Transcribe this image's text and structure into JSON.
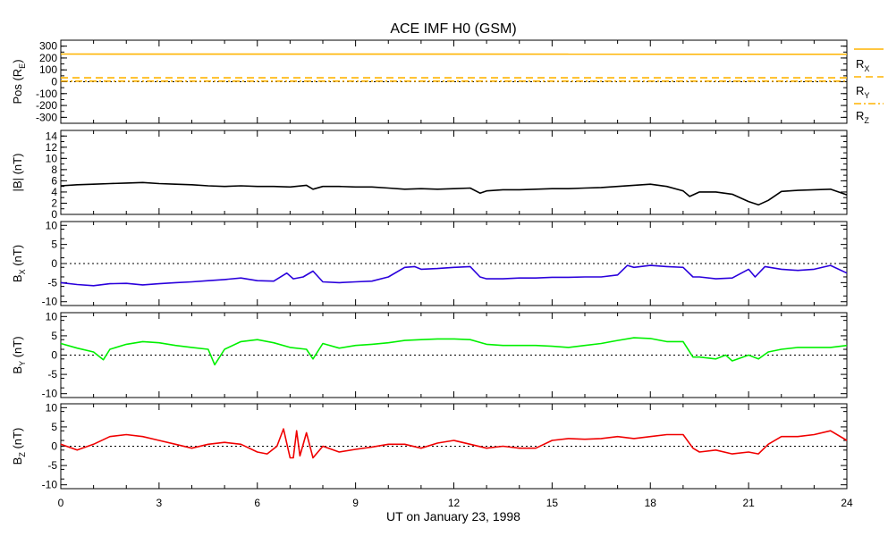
{
  "title": "ACE IMF H0 (GSM)",
  "x_axis": {
    "label": "UT on January 23, 1998",
    "range": [
      0,
      24
    ],
    "ticks": [
      0,
      3,
      6,
      9,
      12,
      15,
      18,
      21,
      24
    ]
  },
  "chart_data": [
    {
      "type": "line",
      "ylabel": "Pos (R",
      "ylabel_sub": "E",
      "ylabel_suffix": ")",
      "ylim": [
        -350,
        350
      ],
      "yticks": [
        -300,
        -200,
        -100,
        0,
        100,
        200,
        300
      ],
      "zero_line": true,
      "legend": [
        {
          "name": "R",
          "sub": "X",
          "style": "solid"
        },
        {
          "name": "R",
          "sub": "Y",
          "style": "dashed"
        },
        {
          "name": "R",
          "sub": "Z",
          "style": "dashdot"
        }
      ],
      "series": [
        {
          "name": "RX",
          "color": "#ffb400",
          "dash": "",
          "x": [
            0,
            24
          ],
          "y": [
            233,
            232
          ]
        },
        {
          "name": "RY",
          "color": "#ffb400",
          "dash": "8,5",
          "x": [
            0,
            24
          ],
          "y": [
            33,
            33
          ]
        },
        {
          "name": "RZ",
          "color": "#ffb400",
          "dash": "8,3,2,3",
          "x": [
            0,
            24
          ],
          "y": [
            5,
            5
          ]
        }
      ]
    },
    {
      "type": "line",
      "ylabel": "|B| (nT)",
      "ylim": [
        0,
        15
      ],
      "yticks": [
        0,
        2,
        4,
        6,
        8,
        10,
        12,
        14
      ],
      "zero_line": false,
      "series": [
        {
          "name": "|B|",
          "color": "#000000",
          "x": [
            0,
            0.5,
            1,
            1.5,
            2,
            2.5,
            3,
            3.5,
            4,
            4.5,
            5,
            5.5,
            6,
            6.5,
            7,
            7.5,
            7.7,
            8,
            8.5,
            9,
            9.5,
            10,
            10.5,
            11,
            11.5,
            12,
            12.5,
            12.8,
            13,
            13.5,
            14,
            14.5,
            15,
            15.5,
            16,
            16.5,
            17,
            17.5,
            18,
            18.5,
            19,
            19.2,
            19.5,
            20,
            20.5,
            21,
            21.3,
            21.6,
            22,
            22.5,
            23,
            23.5,
            24
          ],
          "y": [
            5.1,
            5.3,
            5.4,
            5.5,
            5.6,
            5.7,
            5.5,
            5.4,
            5.3,
            5.1,
            5.0,
            5.1,
            5.0,
            5.0,
            4.9,
            5.2,
            4.5,
            5.0,
            5.0,
            4.9,
            4.9,
            4.7,
            4.5,
            4.6,
            4.5,
            4.6,
            4.7,
            3.8,
            4.2,
            4.4,
            4.4,
            4.5,
            4.6,
            4.6,
            4.7,
            4.8,
            5.0,
            5.2,
            5.4,
            5.0,
            4.2,
            3.2,
            4.0,
            4.0,
            3.6,
            2.3,
            1.7,
            2.5,
            4.1,
            4.3,
            4.4,
            4.5,
            3.5
          ]
        }
      ]
    },
    {
      "type": "line",
      "ylabel": "B",
      "ylabel_sub": "X",
      "ylabel_suffix": " (nT)",
      "ylim": [
        -11,
        11
      ],
      "yticks": [
        -10,
        -5,
        0,
        5,
        10
      ],
      "zero_line": true,
      "series": [
        {
          "name": "BX",
          "color": "#2a00dc",
          "x": [
            0,
            0.5,
            1,
            1.5,
            2,
            2.5,
            3,
            3.5,
            4,
            4.5,
            5,
            5.5,
            6,
            6.5,
            6.9,
            7.1,
            7.4,
            7.7,
            8,
            8.5,
            9,
            9.5,
            10,
            10.5,
            10.8,
            11,
            11.5,
            12,
            12.5,
            12.8,
            13,
            13.5,
            14,
            14.5,
            15,
            15.5,
            16,
            16.5,
            17,
            17.3,
            17.5,
            18,
            18.5,
            19,
            19.3,
            19.5,
            20,
            20.5,
            21,
            21.2,
            21.5,
            22,
            22.5,
            23,
            23.5,
            24
          ],
          "y": [
            -5.0,
            -5.5,
            -5.8,
            -5.3,
            -5.2,
            -5.6,
            -5.3,
            -5.0,
            -4.8,
            -4.5,
            -4.2,
            -3.8,
            -4.5,
            -4.6,
            -2.5,
            -4.0,
            -3.5,
            -2.0,
            -4.8,
            -5.0,
            -4.8,
            -4.6,
            -3.5,
            -1.0,
            -0.8,
            -1.5,
            -1.3,
            -1.0,
            -0.8,
            -3.5,
            -4.0,
            -4.0,
            -3.8,
            -3.8,
            -3.6,
            -3.6,
            -3.5,
            -3.5,
            -3.0,
            -0.5,
            -1.0,
            -0.5,
            -0.8,
            -1.0,
            -3.5,
            -3.5,
            -4.0,
            -3.8,
            -1.5,
            -3.5,
            -0.8,
            -1.5,
            -1.8,
            -1.5,
            -0.5,
            -2.5
          ]
        }
      ]
    },
    {
      "type": "line",
      "ylabel": "B",
      "ylabel_sub": "Y",
      "ylabel_suffix": " (nT)",
      "ylim": [
        -11,
        11
      ],
      "yticks": [
        -10,
        -5,
        0,
        5,
        10
      ],
      "zero_line": true,
      "series": [
        {
          "name": "BY",
          "color": "#00f000",
          "x": [
            0,
            0.5,
            1,
            1.3,
            1.5,
            2,
            2.5,
            3,
            3.5,
            4,
            4.5,
            4.7,
            5,
            5.5,
            6,
            6.5,
            7,
            7.5,
            7.7,
            8,
            8.5,
            9,
            9.5,
            10,
            10.5,
            11,
            11.5,
            12,
            12.5,
            13,
            13.5,
            14,
            14.5,
            15,
            15.5,
            16,
            16.5,
            17,
            17.5,
            18,
            18.5,
            19,
            19.3,
            19.5,
            20,
            20.3,
            20.5,
            21,
            21.3,
            21.6,
            22,
            22.5,
            23,
            23.5,
            24
          ],
          "y": [
            3.0,
            1.8,
            0.8,
            -1.2,
            1.5,
            2.8,
            3.5,
            3.2,
            2.5,
            2.0,
            1.5,
            -2.5,
            1.5,
            3.5,
            4.0,
            3.2,
            2.0,
            1.5,
            -1.0,
            3.0,
            1.8,
            2.5,
            2.8,
            3.2,
            3.8,
            4.0,
            4.2,
            4.2,
            4.0,
            2.8,
            2.5,
            2.5,
            2.5,
            2.3,
            2.0,
            2.5,
            3.0,
            3.8,
            4.5,
            4.3,
            3.5,
            3.5,
            -0.5,
            -0.5,
            -1.0,
            0.0,
            -1.5,
            0.0,
            -1.0,
            0.8,
            1.5,
            2.0,
            2.0,
            2.0,
            2.5
          ]
        }
      ]
    },
    {
      "type": "line",
      "ylabel": "B",
      "ylabel_sub": "Z",
      "ylabel_suffix": " (nT)",
      "ylim": [
        -11,
        11
      ],
      "yticks": [
        -10,
        -5,
        0,
        5,
        10
      ],
      "zero_line": true,
      "series": [
        {
          "name": "BZ",
          "color": "#f00000",
          "x": [
            0,
            0.5,
            1,
            1.5,
            2,
            2.5,
            3,
            3.5,
            4,
            4.5,
            5,
            5.5,
            6,
            6.3,
            6.6,
            6.8,
            7,
            7.1,
            7.2,
            7.3,
            7.5,
            7.7,
            8,
            8.5,
            9,
            9.5,
            10,
            10.5,
            11,
            11.5,
            12,
            12.5,
            13,
            13.5,
            14,
            14.5,
            15,
            15.5,
            16,
            16.5,
            17,
            17.5,
            18,
            18.5,
            19,
            19.3,
            19.5,
            20,
            20.5,
            21,
            21.3,
            21.6,
            22,
            22.5,
            23,
            23.5,
            24
          ],
          "y": [
            0.5,
            -1.0,
            0.5,
            2.5,
            3.0,
            2.5,
            1.5,
            0.5,
            -0.5,
            0.5,
            1.0,
            0.5,
            -1.5,
            -2.0,
            0.0,
            4.5,
            -3.0,
            -3.0,
            4.0,
            -2.5,
            3.5,
            -3.0,
            0.0,
            -1.5,
            -0.8,
            -0.2,
            0.5,
            0.5,
            -0.5,
            0.8,
            1.5,
            0.5,
            -0.5,
            0.0,
            -0.5,
            -0.5,
            1.5,
            2.0,
            1.8,
            2.0,
            2.5,
            2.0,
            2.5,
            3.0,
            3.0,
            -0.5,
            -1.5,
            -1.0,
            -2.0,
            -1.5,
            -2.0,
            0.5,
            2.5,
            2.5,
            3.0,
            4.0,
            1.5
          ]
        }
      ]
    }
  ]
}
